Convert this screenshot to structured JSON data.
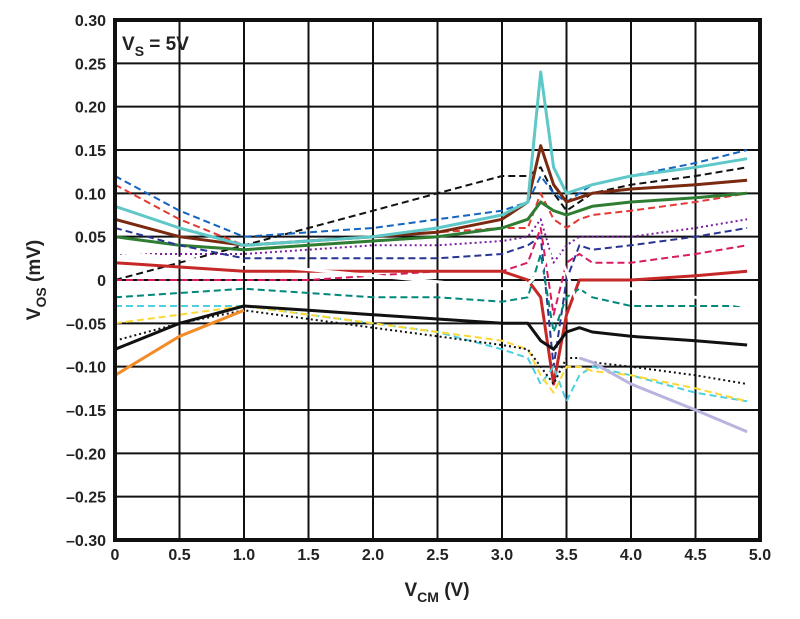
{
  "chart_data": {
    "type": "line",
    "title": "",
    "annotation": {
      "main": "V",
      "sub": "S",
      "rest": " = 5V"
    },
    "xlabel": {
      "main": "V",
      "sub": "CM",
      "rest": " (V)"
    },
    "ylabel": {
      "main": "V",
      "sub": "OS",
      "rest": " (mV)"
    },
    "xlim": [
      0,
      5.0
    ],
    "ylim": [
      -0.3,
      0.3
    ],
    "grid": true,
    "x_ticks": [
      "0",
      "0.5",
      "1.0",
      "1.5",
      "2.0",
      "2.5",
      "3.0",
      "3.5",
      "4.0",
      "4.5",
      "5.0"
    ],
    "y_ticks": [
      "0.30",
      "0.25",
      "0.20",
      "0.15",
      "0.10",
      "0.05",
      "0",
      "–0.05",
      "–0.10",
      "–0.15",
      "–0.20",
      "–0.25",
      "–0.30"
    ],
    "x": [
      0,
      0.5,
      1.0,
      1.5,
      2.0,
      2.5,
      3.0,
      3.2,
      3.3,
      3.4,
      3.5,
      3.6,
      3.7,
      4.0,
      4.5,
      4.9
    ],
    "series": [
      {
        "color": "#111111",
        "dash": "dashed",
        "values": [
          0.0,
          0.02,
          0.04,
          0.06,
          0.08,
          0.1,
          0.12,
          0.12,
          0.13,
          0.1,
          0.08,
          0.09,
          0.1,
          0.11,
          0.12,
          0.13
        ]
      },
      {
        "color": "#1565c0",
        "dash": "dashed",
        "values": [
          0.12,
          0.08,
          0.05,
          0.055,
          0.06,
          0.07,
          0.08,
          0.09,
          0.12,
          0.1,
          0.09,
          0.1,
          0.11,
          0.12,
          0.135,
          0.15
        ]
      },
      {
        "color": "#e53935",
        "dash": "dashed",
        "values": [
          0.11,
          0.07,
          0.04,
          0.045,
          0.05,
          0.055,
          0.06,
          0.06,
          0.1,
          0.07,
          0.06,
          0.07,
          0.075,
          0.08,
          0.09,
          0.1
        ]
      },
      {
        "color": "#2e7d32",
        "dash": "solid",
        "values": [
          0.05,
          0.04,
          0.035,
          0.04,
          0.045,
          0.05,
          0.06,
          0.07,
          0.09,
          0.08,
          0.075,
          0.08,
          0.085,
          0.09,
          0.095,
          0.1
        ]
      },
      {
        "color": "#7b1fa2",
        "dash": "dotted",
        "values": [
          0.03,
          0.03,
          0.03,
          0.035,
          0.04,
          0.04,
          0.045,
          0.05,
          0.07,
          0.02,
          0.04,
          0.05,
          0.05,
          0.05,
          0.06,
          0.07
        ]
      },
      {
        "color": "#283593",
        "dash": "dashed",
        "values": [
          0.06,
          0.04,
          0.025,
          0.025,
          0.025,
          0.025,
          0.03,
          0.04,
          0.05,
          -0.1,
          0.0,
          0.04,
          0.035,
          0.04,
          0.05,
          0.06
        ]
      },
      {
        "color": "#d81b60",
        "dash": "dashed",
        "values": [
          0.0,
          0.0,
          0.0,
          0.0,
          0.005,
          0.01,
          0.01,
          0.02,
          0.06,
          -0.04,
          0.02,
          0.03,
          0.02,
          0.02,
          0.03,
          0.04
        ]
      },
      {
        "color": "#c62828",
        "dash": "solid",
        "values": [
          0.02,
          0.015,
          0.01,
          0.01,
          0.01,
          0.01,
          0.01,
          0.0,
          -0.02,
          -0.12,
          -0.04,
          0.0,
          0.0,
          0.0,
          0.005,
          0.01
        ]
      },
      {
        "color": "#00897b",
        "dash": "dashed",
        "values": [
          -0.02,
          -0.015,
          -0.01,
          -0.015,
          -0.02,
          -0.02,
          -0.025,
          -0.02,
          0.03,
          -0.06,
          -0.02,
          -0.01,
          -0.02,
          -0.03,
          -0.03,
          -0.03
        ]
      },
      {
        "color": "#4dd0e1",
        "dash": "dashed",
        "values": [
          -0.03,
          -0.03,
          -0.03,
          -0.04,
          -0.05,
          -0.06,
          -0.08,
          -0.09,
          -0.12,
          -0.1,
          -0.14,
          -0.11,
          -0.1,
          -0.11,
          -0.13,
          -0.14
        ]
      },
      {
        "color": "#fdd835",
        "dash": "dashed",
        "values": [
          -0.05,
          -0.04,
          -0.03,
          -0.04,
          -0.05,
          -0.06,
          -0.07,
          -0.08,
          -0.11,
          -0.13,
          -0.1,
          -0.1,
          -0.105,
          -0.11,
          -0.125,
          -0.14
        ]
      },
      {
        "color": "#111111",
        "dash": "dotted",
        "values": [
          -0.07,
          -0.05,
          -0.035,
          -0.045,
          -0.055,
          -0.065,
          -0.075,
          -0.08,
          -0.1,
          -0.12,
          -0.09,
          -0.09,
          -0.095,
          -0.1,
          -0.11,
          -0.12
        ]
      },
      {
        "color": "#111111",
        "dash": "solid",
        "values": [
          -0.08,
          -0.05,
          -0.03,
          -0.035,
          -0.04,
          -0.045,
          -0.05,
          -0.05,
          -0.07,
          -0.08,
          -0.06,
          -0.055,
          -0.06,
          -0.065,
          -0.07,
          -0.075
        ]
      },
      {
        "color": "#f28c28",
        "dash": "solid",
        "values": [
          -0.11,
          -0.065,
          -0.035,
          null,
          null,
          null,
          null,
          null,
          null,
          null,
          null,
          null,
          null,
          null,
          null,
          null
        ]
      },
      {
        "color": "#b8b4e0",
        "dash": "solid",
        "values": [
          null,
          null,
          null,
          null,
          null,
          null,
          null,
          null,
          null,
          null,
          null,
          -0.09,
          -0.095,
          -0.12,
          -0.15,
          -0.175
        ]
      },
      {
        "color": "#7a2a10",
        "dash": "solid",
        "values": [
          0.07,
          0.05,
          0.04,
          0.045,
          0.05,
          0.055,
          0.07,
          0.09,
          0.155,
          0.11,
          0.09,
          0.095,
          0.1,
          0.105,
          0.11,
          0.115
        ]
      },
      {
        "color": "#5ec8c8",
        "dash": "solid",
        "values": [
          0.085,
          0.06,
          0.04,
          0.045,
          0.05,
          0.06,
          0.075,
          0.09,
          0.24,
          0.13,
          0.1,
          0.105,
          0.11,
          0.12,
          0.13,
          0.14
        ]
      },
      {
        "color": "#ffffff",
        "dash": "solid",
        "values": [
          0.032,
          0.025,
          0.018,
          0.012,
          0.005,
          -0.002,
          -0.01,
          -0.005,
          0.01,
          0.04,
          0.01,
          -0.035,
          -0.005,
          -0.01,
          -0.02,
          -0.03
        ]
      }
    ]
  }
}
